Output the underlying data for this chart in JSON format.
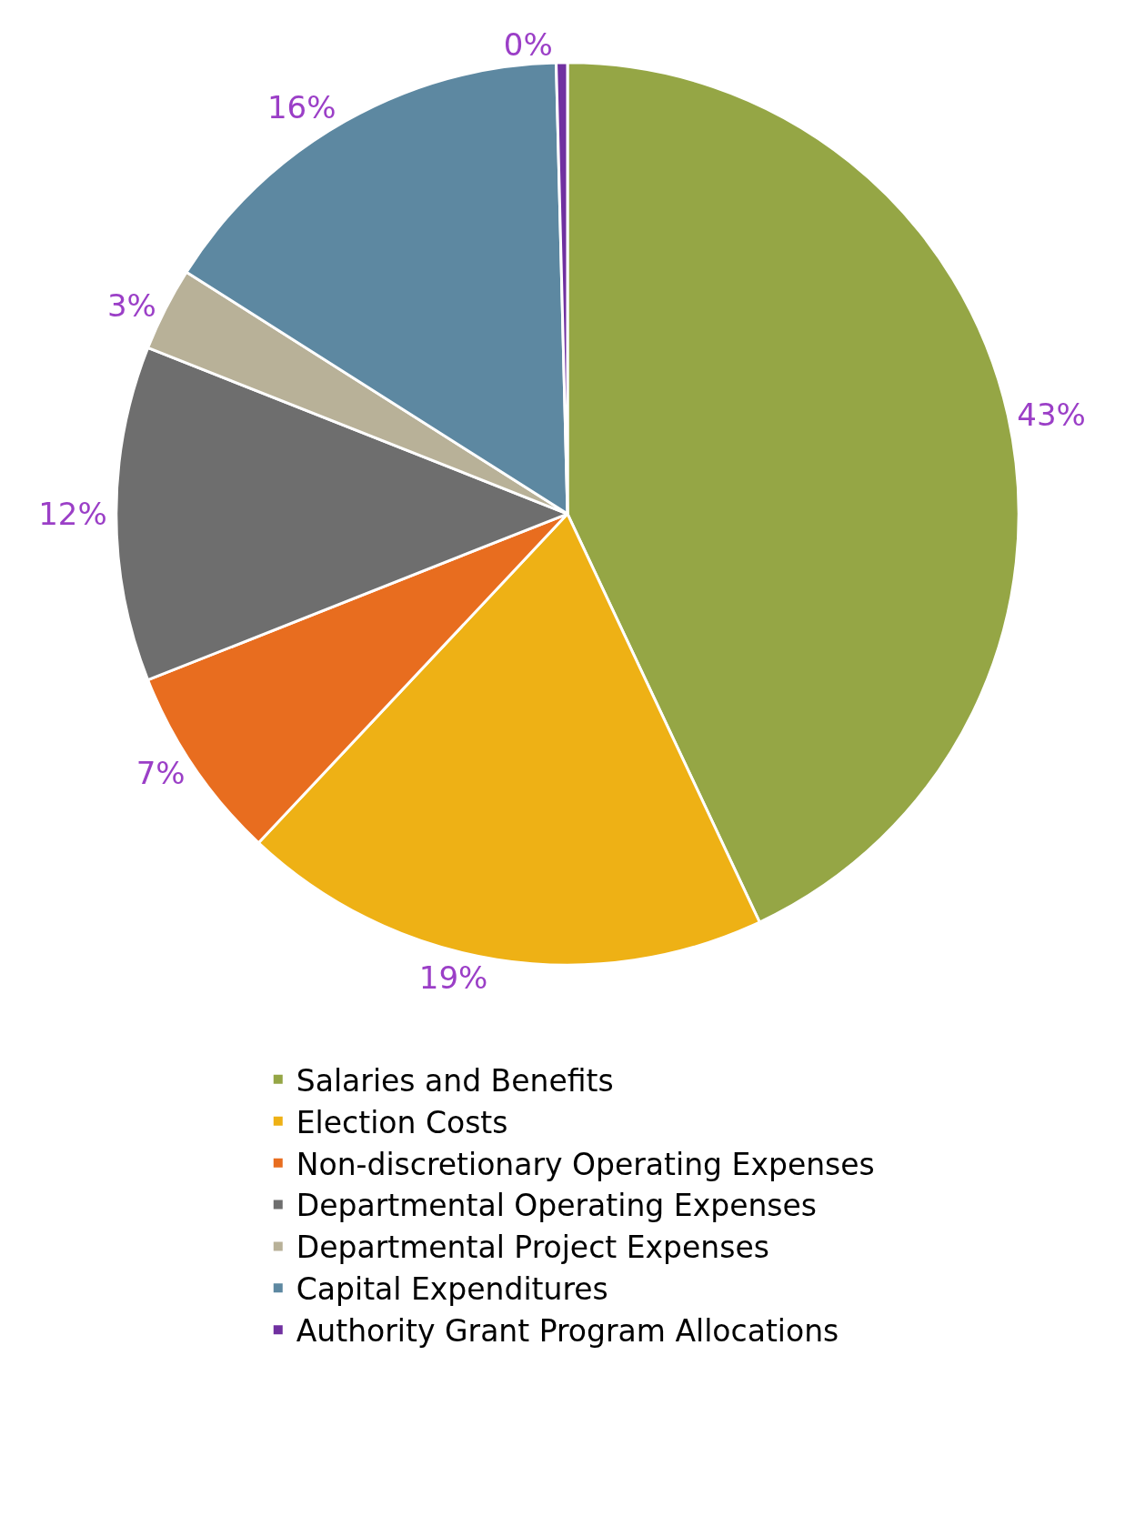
{
  "chart_data": {
    "type": "pie",
    "categories": [
      "Salaries and Benefits",
      "Election Costs",
      "Non-discretionary Operating Expenses",
      "Departmental Operating Expenses",
      "Departmental Project Expenses",
      "Capital Expenditures",
      "Authority Grant Program Allocations"
    ],
    "values": [
      43,
      19,
      7,
      12,
      3,
      15.6,
      0.4
    ],
    "value_labels": [
      "43%",
      "19%",
      "7%",
      "12%",
      "3%",
      "16%",
      "0%"
    ],
    "colors": [
      "#95a645",
      "#eeb115",
      "#e86d1f",
      "#6e6e6e",
      "#b8b198",
      "#5d88a1",
      "#7030a0"
    ],
    "legend": "bottom"
  }
}
